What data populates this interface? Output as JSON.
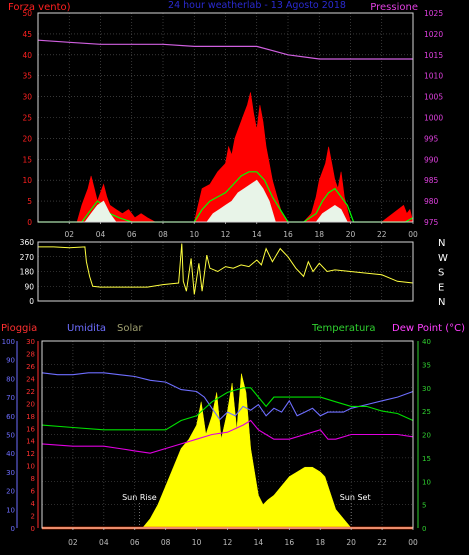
{
  "chart_data": [
    {
      "type": "line",
      "header_left": "Forza vento)",
      "title": "24 hour weatherlab - 13 Agosto 2018",
      "header_right": "Pressione",
      "x_tick_labels": [
        "02",
        "04",
        "06",
        "08",
        "10",
        "12",
        "14",
        "16",
        "18",
        "20",
        "22",
        "00"
      ],
      "y_left": {
        "label": "Forza vento",
        "ticks": [
          0,
          5,
          10,
          15,
          20,
          25,
          30,
          35,
          40,
          45,
          50
        ],
        "range": [
          0,
          50
        ],
        "color": "#ff2020"
      },
      "y_right": {
        "label": "Pressione",
        "ticks": [
          975,
          980,
          985,
          990,
          995,
          1000,
          1005,
          1010,
          1015,
          1020,
          1025
        ],
        "range": [
          975,
          1025
        ],
        "color": "#e040e0"
      },
      "x_range": [
        0,
        24
      ],
      "series": [
        {
          "color": "#ff0000",
          "style": "filled",
          "x": [
            0,
            2.5,
            2.8,
            3.0,
            3.2,
            3.4,
            3.6,
            3.8,
            4.0,
            4.2,
            4.4,
            4.6,
            5.0,
            5.4,
            5.8,
            6.2,
            6.6,
            7.0,
            7.5,
            8.0,
            9.0,
            10.0,
            10.5,
            11.0,
            11.5,
            12.0,
            12.2,
            12.4,
            12.6,
            12.8,
            13.0,
            13.2,
            13.4,
            13.6,
            13.8,
            14.0,
            14.2,
            14.4,
            14.6,
            14.8,
            15.0,
            15.3,
            15.6,
            16.0,
            17.0,
            17.5,
            17.8,
            18.0,
            18.2,
            18.4,
            18.6,
            18.8,
            19.0,
            19.2,
            19.4,
            19.6,
            19.8,
            20.0,
            20.5,
            22.0,
            23.4,
            23.6,
            23.8,
            24.0
          ],
          "y": [
            0,
            0,
            4,
            6,
            8,
            11,
            8,
            5,
            7,
            9,
            6,
            4,
            3,
            2,
            3,
            1,
            2,
            1,
            0,
            0,
            0,
            0,
            8,
            9,
            12,
            14,
            18,
            16,
            20,
            22,
            24,
            26,
            28,
            31,
            26,
            22,
            28,
            24,
            18,
            14,
            10,
            6,
            2,
            0,
            0,
            2,
            6,
            10,
            12,
            14,
            18,
            14,
            10,
            8,
            12,
            6,
            3,
            0,
            0,
            0,
            4,
            2,
            3,
            0
          ]
        },
        {
          "color": "#00ff00",
          "style": "line",
          "x": [
            0,
            2.8,
            3.4,
            3.8,
            4.2,
            4.6,
            5.2,
            6.0,
            7.0,
            8.0,
            10.0,
            10.5,
            11.0,
            11.5,
            12.0,
            12.5,
            13.0,
            13.5,
            14.0,
            14.5,
            15.0,
            15.5,
            16.0,
            17.0,
            17.8,
            18.2,
            18.6,
            19.0,
            19.4,
            19.8,
            20.2,
            23.5,
            24.0
          ],
          "y": [
            0,
            0,
            3,
            5,
            4,
            2,
            1,
            0,
            0,
            0,
            0,
            3,
            5,
            6,
            7,
            9,
            11,
            12,
            12,
            10,
            6,
            3,
            0,
            0,
            2,
            5,
            7,
            8,
            6,
            4,
            0,
            0,
            1
          ]
        },
        {
          "color": "#e8f4e8",
          "style": "filled",
          "x": [
            0,
            3.0,
            3.4,
            3.8,
            4.2,
            4.6,
            5.0,
            10.8,
            11.2,
            11.6,
            12.0,
            12.4,
            12.8,
            13.2,
            13.6,
            14.0,
            14.4,
            14.8,
            15.2,
            17.8,
            18.2,
            18.6,
            19.0,
            19.4,
            19.8,
            24.0
          ],
          "y": [
            0,
            0,
            2,
            4,
            5,
            2,
            0,
            0,
            2,
            3,
            4,
            5,
            7,
            8,
            9,
            10,
            8,
            5,
            0,
            0,
            2,
            3,
            4,
            3,
            0,
            0
          ]
        },
        {
          "color": "#d060e0",
          "style": "line",
          "axis": "right",
          "x": [
            0,
            2,
            4,
            6,
            8,
            10,
            12,
            13,
            14,
            15,
            16,
            18,
            19,
            20,
            22,
            24
          ],
          "y": [
            1018.5,
            1018,
            1017.5,
            1017.5,
            1017.5,
            1017,
            1017,
            1017,
            1017,
            1016,
            1015,
            1014,
            1014,
            1014,
            1014,
            1014
          ]
        }
      ],
      "grid": true
    },
    {
      "type": "line",
      "y_left": {
        "ticks": [
          0,
          90,
          180,
          270,
          360
        ],
        "range": [
          0,
          360
        ]
      },
      "y_right_labels": [
        "N",
        "W",
        "S",
        "E",
        "N"
      ],
      "x_range": [
        0,
        24
      ],
      "series": [
        {
          "color": "#ffff40",
          "x": [
            0,
            1,
            2,
            3,
            3.1,
            3.3,
            3.5,
            4,
            5,
            6,
            7,
            8,
            9,
            9.2,
            9.3,
            9.5,
            9.8,
            10,
            10.3,
            10.5,
            10.8,
            11,
            11.5,
            12,
            12.5,
            13,
            13.5,
            14,
            14.3,
            14.6,
            15,
            15.5,
            16,
            16.5,
            17,
            17.3,
            17.6,
            18,
            18.5,
            19,
            20,
            21,
            22,
            23,
            24
          ],
          "y": [
            330,
            330,
            325,
            330,
            240,
            150,
            90,
            85,
            85,
            85,
            85,
            100,
            110,
            350,
            120,
            60,
            260,
            40,
            230,
            60,
            280,
            200,
            180,
            210,
            200,
            220,
            210,
            250,
            220,
            320,
            240,
            320,
            270,
            200,
            150,
            240,
            180,
            230,
            180,
            190,
            180,
            170,
            160,
            120,
            110
          ]
        }
      ],
      "grid": true
    },
    {
      "type": "line",
      "headers": {
        "rain": "Pioggia",
        "humidity": "Umidita",
        "solar": "Solar",
        "temperature": "Temperatura",
        "dewpoint": "Dew Point (°C)"
      },
      "x_tick_labels": [
        "02",
        "04",
        "06",
        "08",
        "10",
        "12",
        "14",
        "16",
        "18",
        "20",
        "22",
        "00"
      ],
      "x_range": [
        0,
        24
      ],
      "y_axis_humidity": {
        "ticks": [
          0,
          10,
          20,
          30,
          40,
          50,
          60,
          70,
          80,
          90,
          100
        ],
        "range": [
          0,
          100
        ],
        "color": "#6e6eff"
      },
      "y_axis_rain": {
        "ticks": [
          0,
          2,
          4,
          6,
          8,
          10,
          12,
          14,
          16,
          18,
          20,
          22,
          24,
          26,
          28,
          30
        ],
        "range": [
          0,
          30
        ],
        "color": "#ff3030"
      },
      "y_axis_temperature": {
        "ticks": [
          0,
          5,
          10,
          15,
          20,
          25,
          30,
          35,
          40
        ],
        "range": [
          0,
          40
        ],
        "color": "#30d030"
      },
      "annotations": [
        "Sun Rise",
        "Sun Set"
      ],
      "series": [
        {
          "name": "Umidita",
          "color": "#6e6eff",
          "axis": "humidity",
          "x": [
            0,
            1,
            2,
            3,
            4,
            5,
            6,
            7,
            8,
            9,
            10,
            10.5,
            11,
            11.5,
            12,
            12.5,
            13,
            13.5,
            14,
            14.5,
            15,
            15.5,
            16,
            16.5,
            17,
            17.5,
            18,
            18.5,
            19,
            19.5,
            20,
            21,
            22,
            23,
            24
          ],
          "y": [
            83,
            82,
            82,
            83,
            83,
            82,
            81,
            79,
            78,
            74,
            73,
            70,
            64,
            58,
            62,
            60,
            65,
            63,
            66,
            60,
            64,
            62,
            68,
            60,
            62,
            64,
            60,
            62,
            62,
            62,
            64,
            66,
            68,
            70,
            73
          ]
        },
        {
          "name": "Temperatura",
          "color": "#00e000",
          "axis": "temperature",
          "x": [
            0,
            2,
            4,
            6,
            8,
            9,
            10,
            11,
            12,
            13,
            13.5,
            14,
            14.5,
            15,
            16,
            17,
            18,
            19,
            20,
            21,
            22,
            23,
            24
          ],
          "y": [
            22,
            21.5,
            21,
            21,
            21,
            23,
            24,
            27,
            29,
            30,
            30,
            28,
            26,
            28,
            28,
            28,
            28,
            27,
            26,
            26,
            25,
            24.5,
            23
          ]
        },
        {
          "name": "Dew Point (°C)",
          "color": "#e000e0",
          "axis": "temperature",
          "x": [
            0,
            2,
            4,
            5,
            6,
            7,
            8,
            9,
            10,
            11,
            12,
            13,
            13.5,
            14,
            14.5,
            15,
            16,
            17,
            18,
            18.5,
            19,
            20,
            21,
            22,
            23,
            24
          ],
          "y": [
            18,
            17.5,
            17.5,
            17,
            16.5,
            16,
            17,
            18,
            19,
            20,
            20.5,
            22,
            23,
            21,
            20,
            19,
            19,
            20,
            21,
            19,
            19,
            20,
            20,
            20,
            20,
            19.5
          ]
        },
        {
          "name": "Solar",
          "color": "#ffff00",
          "axis": "temperature",
          "style": "filled",
          "x": [
            0,
            6.5,
            7.0,
            7.5,
            8.0,
            8.5,
            9.0,
            9.5,
            10.0,
            10.3,
            10.6,
            11.0,
            11.3,
            11.6,
            12.0,
            12.3,
            12.6,
            12.9,
            13.2,
            13.5,
            13.8,
            14.0,
            14.3,
            14.6,
            15.0,
            15.5,
            16.0,
            16.5,
            17.0,
            17.5,
            18.0,
            18.3,
            18.6,
            19.0,
            19.5,
            20.0,
            24.0
          ],
          "y": [
            0,
            0,
            2,
            5,
            9,
            13,
            17,
            19,
            22,
            27,
            20,
            24,
            29,
            19,
            25,
            31,
            21,
            33,
            29,
            17,
            11,
            7,
            5,
            6,
            7,
            9,
            11,
            12,
            13,
            13,
            12,
            11,
            8,
            4,
            2,
            0,
            0
          ]
        },
        {
          "name": "Pioggia",
          "color": "#ff4000",
          "axis": "rain",
          "x": [
            0,
            24
          ],
          "y": [
            0,
            0
          ]
        }
      ],
      "grid": true
    }
  ]
}
